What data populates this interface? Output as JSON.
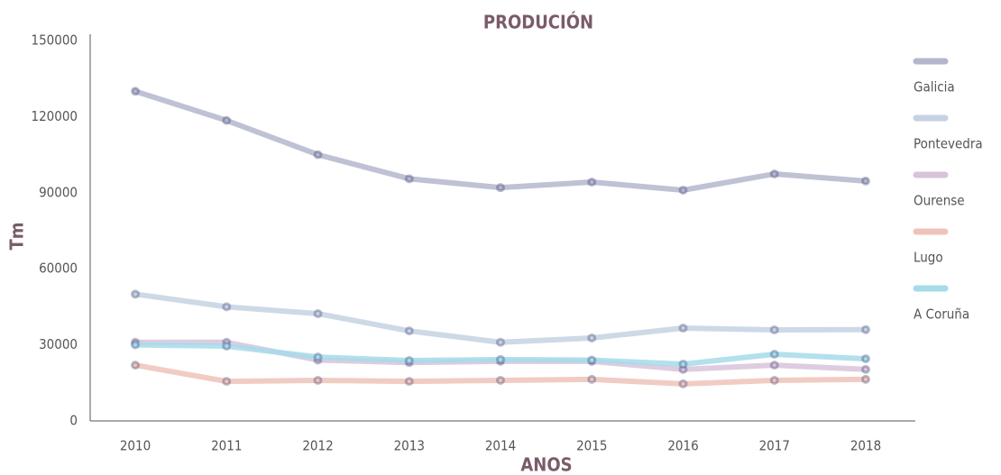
{
  "chart_data": {
    "type": "line",
    "title": "PRODUCIÓN",
    "x_label": "ANOS",
    "y_label": "Tm",
    "categories": [
      "2010",
      "2011",
      "2012",
      "2013",
      "2014",
      "2015",
      "2016",
      "2017",
      "2018"
    ],
    "series": [
      {
        "name": "Galicia",
        "color": "#b4b6cc",
        "values": [
          130000,
          118500,
          105000,
          95500,
          92000,
          94200,
          91000,
          97400,
          94600
        ]
      },
      {
        "name": "Pontevedra",
        "color": "#c6d2e2",
        "values": [
          50000,
          45000,
          42300,
          35500,
          31000,
          32700,
          36600,
          35900,
          36000
        ]
      },
      {
        "name": "Ourense",
        "color": "#d8c3da",
        "values": [
          31000,
          31000,
          24000,
          23000,
          23500,
          23500,
          20300,
          22000,
          20300
        ]
      },
      {
        "name": "Lugo",
        "color": "#efc3b9",
        "values": [
          22000,
          15600,
          16000,
          15600,
          16000,
          16400,
          14600,
          16000,
          16400
        ]
      },
      {
        "name": "A Coruña",
        "color": "#a6dbea",
        "values": [
          30000,
          29500,
          25200,
          23800,
          24200,
          24000,
          22400,
          26300,
          24500
        ]
      }
    ],
    "ylim": [
      0,
      150000
    ],
    "yticks": [
      0,
      30000,
      60000,
      90000,
      120000,
      150000
    ],
    "legend": "right"
  }
}
